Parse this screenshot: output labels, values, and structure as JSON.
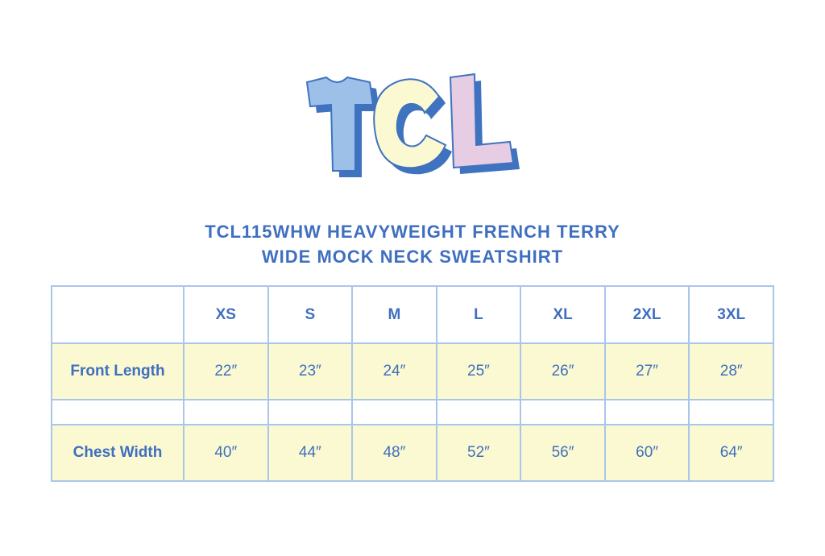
{
  "logo": {
    "text": "TCL",
    "colors": {
      "T": "#9dc0e8",
      "C": "#fbf9d2",
      "L": "#e6cde3",
      "shadow": "#3f73c0"
    }
  },
  "title": {
    "line1": "TCL115WHW HEAVYWEIGHT FRENCH TERRY",
    "line2": "WIDE MOCK NECK SWEATSHIRT"
  },
  "table": {
    "sizes": [
      "XS",
      "S",
      "M",
      "L",
      "XL",
      "2XL",
      "3XL"
    ],
    "rows": [
      {
        "label": "Front Length",
        "values": [
          "22″",
          "23″",
          "24″",
          "25″",
          "26″",
          "27″",
          "28″"
        ]
      },
      {
        "label": "Chest Width",
        "values": [
          "40″",
          "44″",
          "48″",
          "52″",
          "56″",
          "60″",
          "64″"
        ]
      }
    ]
  },
  "colors": {
    "text": "#3f6fbf",
    "border": "#a9c6ea",
    "row_fill": "#fbf9d2"
  }
}
